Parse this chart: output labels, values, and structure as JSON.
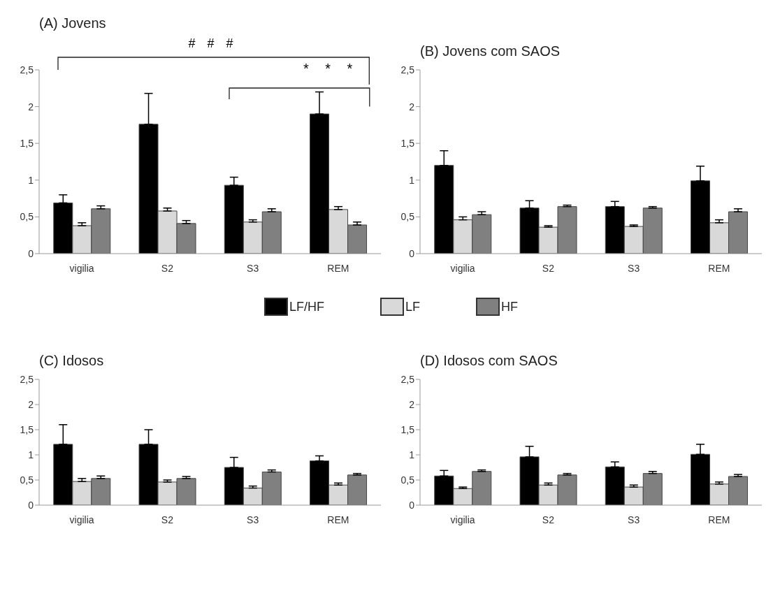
{
  "chart_data": [
    {
      "type": "bar",
      "title": "(A)  Jovens",
      "categories": [
        "vigilia",
        "S2",
        "S3",
        "REM"
      ],
      "ylim": [
        0,
        2.5
      ],
      "yticks": [
        0,
        {
          "value": 0.5,
          "label": "0,5"
        },
        1,
        {
          "value": 1.5,
          "label": "1,5"
        },
        2,
        {
          "value": 2.5,
          "label": "2,5"
        }
      ],
      "grid": false,
      "legend": "bottom",
      "annotations": [
        "# # #",
        "* * *"
      ],
      "series": [
        {
          "name": "LF/HF",
          "color": "#000000",
          "values": [
            0.69,
            1.76,
            0.93,
            1.9
          ],
          "errors": [
            [
              0.69,
              0.8
            ],
            [
              1.76,
              2.18
            ],
            [
              0.93,
              1.04
            ],
            [
              1.9,
              2.2
            ]
          ]
        },
        {
          "name": "LF",
          "color": "#d9d9d9",
          "values": [
            0.38,
            0.58,
            0.43,
            0.6
          ],
          "errors": [
            [
              0.38,
              0.42
            ],
            [
              0.58,
              0.62
            ],
            [
              0.43,
              0.46
            ],
            [
              0.6,
              0.64
            ]
          ]
        },
        {
          "name": "HF",
          "color": "#808080",
          "values": [
            0.61,
            0.41,
            0.57,
            0.39
          ],
          "errors": [
            [
              0.61,
              0.65
            ],
            [
              0.41,
              0.45
            ],
            [
              0.57,
              0.61
            ],
            [
              0.39,
              0.43
            ]
          ]
        }
      ]
    },
    {
      "type": "bar",
      "title": "(B)  Jovens com SAOS",
      "categories": [
        "vigilia",
        "S2",
        "S3",
        "REM"
      ],
      "ylim": [
        0,
        2.5
      ],
      "yticks": [
        0,
        {
          "value": 0.5,
          "label": "0,5"
        },
        1,
        {
          "value": 1.5,
          "label": "1,5"
        },
        2,
        {
          "value": 2.5,
          "label": "2,5"
        }
      ],
      "grid": false,
      "series": [
        {
          "color": "#000000",
          "values": [
            1.2,
            0.62,
            0.64,
            0.99
          ],
          "errors": [
            [
              1.2,
              1.4
            ],
            [
              0.62,
              0.72
            ],
            [
              0.64,
              0.71
            ],
            [
              0.99,
              1.19
            ]
          ]
        },
        {
          "color": "#d9d9d9",
          "values": [
            0.46,
            0.36,
            0.37,
            0.42
          ],
          "errors": [
            [
              0.46,
              0.5
            ],
            [
              0.36,
              0.38
            ],
            [
              0.37,
              0.39
            ],
            [
              0.42,
              0.46
            ]
          ]
        },
        {
          "color": "#808080",
          "values": [
            0.53,
            0.64,
            0.62,
            0.57
          ],
          "errors": [
            [
              0.53,
              0.57
            ],
            [
              0.64,
              0.66
            ],
            [
              0.62,
              0.64
            ],
            [
              0.57,
              0.61
            ]
          ]
        }
      ]
    },
    {
      "type": "bar",
      "title": "(C)  Idosos",
      "categories": [
        "vigilia",
        "S2",
        "S3",
        "REM"
      ],
      "ylim": [
        0,
        2.5
      ],
      "yticks": [
        0,
        {
          "value": 0.5,
          "label": "0,5"
        },
        1,
        {
          "value": 1.5,
          "label": "1,5"
        },
        2,
        {
          "value": 2.5,
          "label": "2,5"
        }
      ],
      "grid": false,
      "series": [
        {
          "color": "#000000",
          "values": [
            1.21,
            1.21,
            0.75,
            0.88
          ],
          "errors": [
            [
              1.21,
              1.6
            ],
            [
              1.21,
              1.5
            ],
            [
              0.75,
              0.95
            ],
            [
              0.88,
              0.98
            ]
          ]
        },
        {
          "color": "#d9d9d9",
          "values": [
            0.47,
            0.46,
            0.34,
            0.4
          ],
          "errors": [
            [
              0.47,
              0.53
            ],
            [
              0.46,
              0.5
            ],
            [
              0.34,
              0.38
            ],
            [
              0.4,
              0.44
            ]
          ]
        },
        {
          "color": "#808080",
          "values": [
            0.53,
            0.53,
            0.66,
            0.6
          ],
          "errors": [
            [
              0.53,
              0.58
            ],
            [
              0.53,
              0.57
            ],
            [
              0.66,
              0.7
            ],
            [
              0.6,
              0.63
            ]
          ]
        }
      ]
    },
    {
      "type": "bar",
      "title": "(D)  Idosos com SAOS",
      "categories": [
        "vigilia",
        "S2",
        "S3",
        "REM"
      ],
      "ylim": [
        0,
        2.5
      ],
      "yticks": [
        0,
        {
          "value": 0.5,
          "label": "0,5"
        },
        1,
        {
          "value": 1.5,
          "label": "1,5"
        },
        2,
        {
          "value": 2.5,
          "label": "2,5"
        }
      ],
      "grid": false,
      "series": [
        {
          "color": "#000000",
          "values": [
            0.58,
            0.96,
            0.76,
            1.01
          ],
          "errors": [
            [
              0.58,
              0.69
            ],
            [
              0.96,
              1.17
            ],
            [
              0.76,
              0.86
            ],
            [
              1.01,
              1.21
            ]
          ]
        },
        {
          "color": "#d9d9d9",
          "values": [
            0.33,
            0.4,
            0.36,
            0.42
          ],
          "errors": [
            [
              0.33,
              0.36
            ],
            [
              0.4,
              0.44
            ],
            [
              0.36,
              0.4
            ],
            [
              0.42,
              0.46
            ]
          ]
        },
        {
          "color": "#808080",
          "values": [
            0.67,
            0.6,
            0.63,
            0.57
          ],
          "errors": [
            [
              0.67,
              0.7
            ],
            [
              0.6,
              0.63
            ],
            [
              0.63,
              0.67
            ],
            [
              0.57,
              0.61
            ]
          ]
        }
      ]
    }
  ]
}
